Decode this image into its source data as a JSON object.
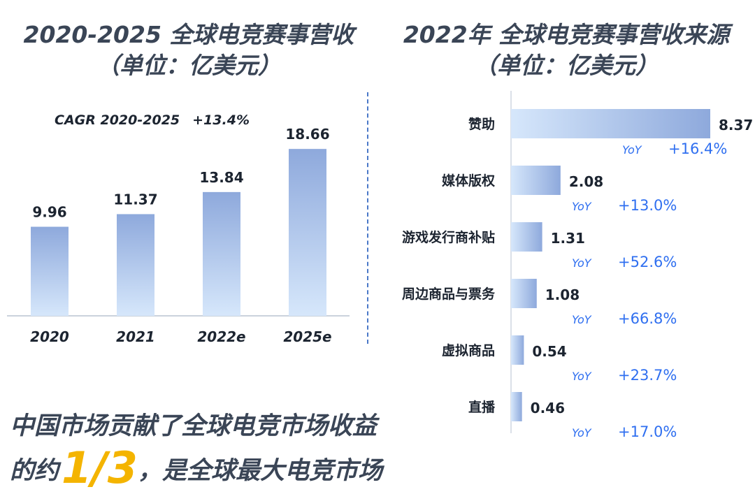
{
  "left_title": {
    "line1": "2020-2025 全球电竞赛事营收",
    "line2": "（单位：亿美元）"
  },
  "right_title": {
    "line1": "2022年 全球电竞赛事营收来源",
    "line2": "（单位：亿美元）"
  },
  "cagr": {
    "label": "CAGR 2020-2025",
    "value": "+13.4%"
  },
  "yoy_tag": "YoY",
  "bottom": {
    "line1": "中国市场贡献了全球电竞市场收益",
    "line2_pre": "的约",
    "highlight": "1/3",
    "line2_post": "，是全球最大电竞市场"
  },
  "colors": {
    "bar_top": "#8ea9dc",
    "bar_bottom": "#d6e7fb",
    "accent": "#2f6ff0",
    "highlight": "#f4b400"
  },
  "chart_data": [
    {
      "type": "bar",
      "categories": [
        "2020",
        "2021",
        "2022e",
        "2025e"
      ],
      "values": [
        9.96,
        11.37,
        13.84,
        18.66
      ],
      "value_labels": [
        "9.96",
        "11.37",
        "13.84",
        "18.66"
      ],
      "ylim": [
        0,
        20
      ]
    },
    {
      "type": "bar",
      "orientation": "horizontal",
      "categories": [
        "赞助",
        "媒体版权",
        "游戏发行商补贴",
        "周边商品与票务",
        "虚拟商品",
        "直播"
      ],
      "values": [
        8.37,
        2.08,
        1.31,
        1.08,
        0.54,
        0.46
      ],
      "value_labels": [
        "8.37",
        "2.08",
        "1.31",
        "1.08",
        "0.54",
        "0.46"
      ],
      "yoy": [
        "+16.4%",
        "+13.0%",
        "+52.6%",
        "+66.8%",
        "+23.7%",
        "+17.0%"
      ],
      "xlim": [
        0,
        8.37
      ]
    }
  ]
}
